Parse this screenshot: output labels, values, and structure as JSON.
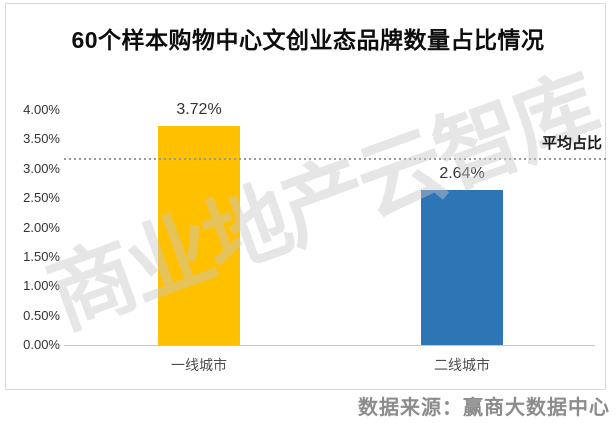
{
  "title": "60个样本购物中心文创业态品牌数量占比情况",
  "watermark": "商业地产云智库",
  "source": "数据来源：赢商大数据中心",
  "chart_data": {
    "type": "bar",
    "title": "60个样本购物中心文创业态品牌数量占比情况",
    "categories": [
      "一线城市",
      "二线城市"
    ],
    "values": [
      3.72,
      2.64
    ],
    "value_labels": [
      "3.72%",
      "2.64%"
    ],
    "bar_colors": [
      "#FFC000",
      "#2E75B6"
    ],
    "average_line": {
      "label": "平均占比",
      "value": 3.18,
      "style": "dotted",
      "color": "#999999"
    },
    "y_ticks": [
      "4.00%",
      "3.50%",
      "3.00%",
      "2.50%",
      "2.00%",
      "1.50%",
      "1.00%",
      "0.50%",
      "0.00%"
    ],
    "ylim": [
      0,
      4
    ],
    "xlabel": "",
    "ylabel": "",
    "grid": false,
    "legend": "none"
  }
}
